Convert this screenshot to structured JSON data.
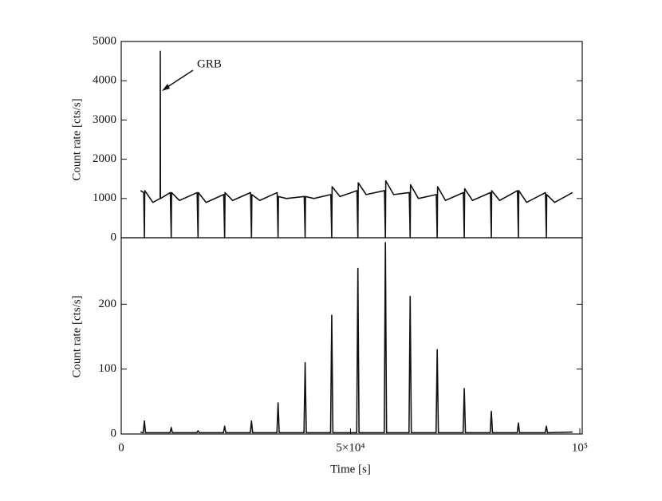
{
  "chart_data": [
    {
      "type": "line",
      "ylabel": "Count rate [cts/s]",
      "annotation": "GRB",
      "color": "#111111",
      "xlim": [
        0,
        100000
      ],
      "ylim": [
        0,
        5000
      ],
      "yticks": [
        0,
        1000,
        2000,
        3000,
        4000,
        5000
      ],
      "x": [
        4200,
        4900,
        5050,
        5130,
        6900,
        8480,
        8520,
        8560,
        10700,
        10900,
        10980,
        12700,
        16550,
        16750,
        16830,
        18500,
        22350,
        22550,
        22630,
        24300,
        28200,
        28400,
        28480,
        30200,
        34000,
        34200,
        34280,
        36000,
        39900,
        40100,
        40180,
        42000,
        45700,
        45900,
        45980,
        47700,
        51400,
        51600,
        51680,
        53400,
        57400,
        57600,
        57680,
        59400,
        62800,
        63000,
        63080,
        64800,
        68700,
        68900,
        68980,
        70700,
        74600,
        74800,
        74880,
        76600,
        80500,
        80700,
        80780,
        82500,
        86400,
        86600,
        86680,
        88400,
        92500,
        92700,
        92780,
        94500,
        98400
      ],
      "values": [
        1200,
        1150,
        0,
        1200,
        900,
        1000,
        4750,
        1000,
        1150,
        0,
        1150,
        950,
        1150,
        0,
        1150,
        900,
        1100,
        0,
        1150,
        950,
        1150,
        0,
        1100,
        950,
        1150,
        0,
        1050,
        1000,
        1050,
        0,
        1050,
        1000,
        1100,
        0,
        1300,
        1050,
        1200,
        0,
        1400,
        1100,
        1200,
        0,
        1450,
        1100,
        1150,
        0,
        1350,
        1000,
        1100,
        0,
        1300,
        950,
        1150,
        0,
        1250,
        950,
        1150,
        0,
        1200,
        950,
        1200,
        0,
        1200,
        900,
        1150,
        0,
        1100,
        900,
        1150
      ]
    },
    {
      "type": "line",
      "ylabel": "Count rate [cts/s]",
      "xlabel": "Time [s]",
      "color": "#111111",
      "xlim": [
        0,
        100000
      ],
      "ylim": [
        0,
        300
      ],
      "yticks": [
        0,
        100,
        200
      ],
      "xticks": [
        0,
        {
          "value": 50000,
          "label": "5×10⁴"
        },
        {
          "value": 100000,
          "label": "10⁵"
        }
      ],
      "x": [
        4200,
        4800,
        5050,
        5300,
        10650,
        10900,
        11150,
        16500,
        16750,
        17000,
        22300,
        22550,
        22800,
        28150,
        28400,
        28650,
        33950,
        34200,
        34450,
        39850,
        40100,
        40350,
        45650,
        45900,
        46150,
        51350,
        51600,
        51850,
        57350,
        57600,
        57850,
        62750,
        63000,
        63250,
        68650,
        68900,
        69150,
        74550,
        74800,
        75050,
        80450,
        80700,
        80950,
        86350,
        86600,
        86850,
        92450,
        92700,
        92950,
        98400
      ],
      "values": [
        3,
        2,
        20,
        2,
        2,
        10,
        2,
        2,
        5,
        2,
        2,
        12,
        2,
        2,
        20,
        2,
        2,
        48,
        2,
        2,
        110,
        2,
        2,
        183,
        2,
        2,
        255,
        2,
        2,
        295,
        2,
        2,
        212,
        2,
        2,
        130,
        2,
        2,
        70,
        2,
        2,
        35,
        2,
        2,
        17,
        2,
        2,
        12,
        2,
        3
      ]
    }
  ]
}
